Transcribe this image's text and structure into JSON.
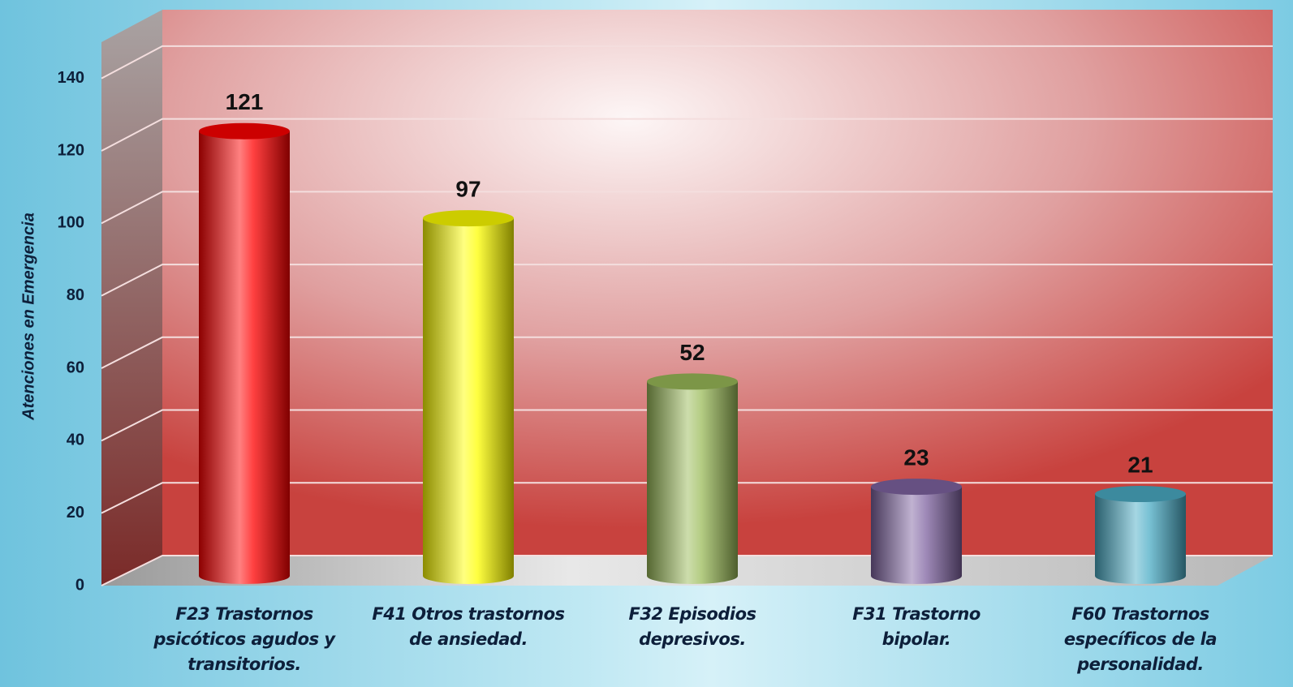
{
  "chart_data": {
    "type": "bar",
    "y_label": "Atenciones en Emergencia",
    "categories": [
      "F23 Trastornos psicóticos agudos y transitorios.",
      "F41 Otros trastornos de ansiedad.",
      "F32 Episodios depresivos.",
      "F31 Trastorno bipolar.",
      "F60 Trastornos específicos de la personalidad."
    ],
    "values": [
      121,
      97,
      52,
      23,
      21
    ],
    "colors": [
      "#ff0000",
      "#ffff00",
      "#9bbb59",
      "#8064a2",
      "#4bacc6"
    ],
    "ylim": [
      0,
      150
    ],
    "yticks": [
      0,
      20,
      40,
      60,
      80,
      100,
      120,
      140
    ],
    "grid": true
  }
}
